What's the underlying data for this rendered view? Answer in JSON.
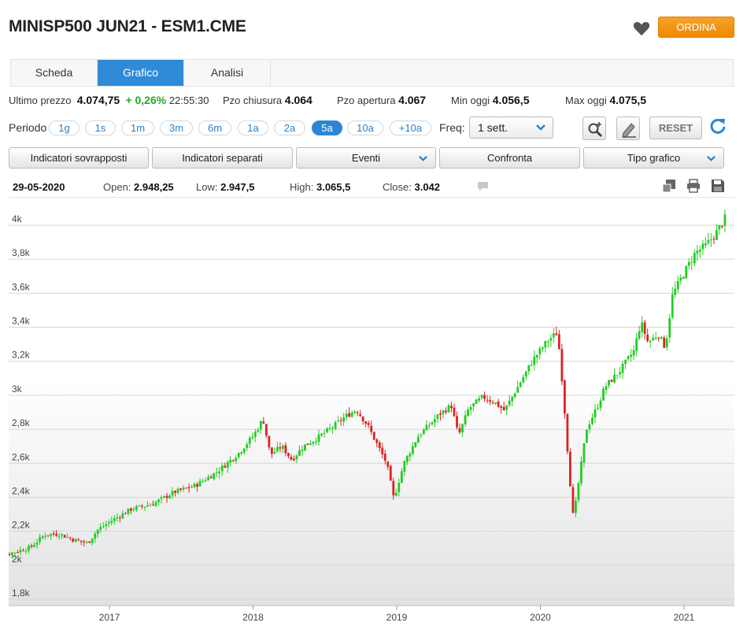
{
  "header": {
    "title": "MINISP500 JUN21 - ESM1.CME",
    "order_label": "ORDINA",
    "favorite_icon": "heart-icon"
  },
  "tabs": [
    {
      "label": "Scheda",
      "active": false
    },
    {
      "label": "Grafico",
      "active": true
    },
    {
      "label": "Analisi",
      "active": false
    }
  ],
  "quote": {
    "last_label": "Ultimo prezzo",
    "last_value": "4.074,75",
    "change": "+ 0,26%",
    "time": "22:55:30",
    "close_label": "Pzo chiusura",
    "close_value": "4.064",
    "open_label": "Pzo apertura",
    "open_value": "4.067",
    "low_label": "Min oggi",
    "low_value": "4.056,5",
    "high_label": "Max oggi",
    "high_value": "4.075,5"
  },
  "controls": {
    "period_label": "Periodo",
    "periods": [
      "1g",
      "1s",
      "1m",
      "3m",
      "6m",
      "1a",
      "2a",
      "5a",
      "10a",
      "+10a"
    ],
    "active_period": "5a",
    "freq_label": "Freq:",
    "freq_value": "1 sett.",
    "reset_label": "RESET",
    "zoom_icon": "zoom-plus-icon",
    "draw_icon": "pencil-icon",
    "refresh_icon": "refresh-icon"
  },
  "toolbar": {
    "overlay_label": "Indicatori sovrapposti",
    "separate_label": "Indicatori separati",
    "events_label": "Eventi",
    "compare_label": "Confronta",
    "chart_type_label": "Tipo grafico"
  },
  "ohlc": {
    "date": "29-05-2020",
    "open_label": "Open:",
    "open_value": "2.948,25",
    "low_label": "Low:",
    "low_value": "2.947,5",
    "high_label": "High:",
    "high_value": "3.065,5",
    "close_label": "Close:",
    "close_value": "3.042"
  },
  "chart_data": {
    "type": "candlestick",
    "frequency": "weekly",
    "y_ticks": [
      "4k",
      "3,8k",
      "3,6k",
      "3,4k",
      "3,2k",
      "3k",
      "2,8k",
      "2,6k",
      "2,4k",
      "2,2k",
      "2k",
      "1,8k"
    ],
    "y_tick_values": [
      4000,
      3800,
      3600,
      3400,
      3200,
      3000,
      2800,
      2600,
      2400,
      2200,
      2000,
      1800
    ],
    "x_ticks": [
      "2017",
      "2018",
      "2019",
      "2020",
      "2021"
    ],
    "x_tick_positions": [
      2017.0,
      2018.0,
      2019.0,
      2020.0,
      2021.0
    ],
    "ylim": [
      1800,
      4080
    ],
    "xlim": [
      2016.15,
      2021.3
    ],
    "colors": {
      "up": "#22cc22",
      "down": "#dd2222",
      "grid": "#d6d6d6"
    },
    "anchors": [
      [
        2016.15,
        2035
      ],
      [
        2016.25,
        2055
      ],
      [
        2016.35,
        2080
      ],
      [
        2016.45,
        2105
      ],
      [
        2016.55,
        2180
      ],
      [
        2016.65,
        2185
      ],
      [
        2016.75,
        2150
      ],
      [
        2016.85,
        2130
      ],
      [
        2016.92,
        2210
      ],
      [
        2017.0,
        2255
      ],
      [
        2017.15,
        2330
      ],
      [
        2017.3,
        2360
      ],
      [
        2017.45,
        2430
      ],
      [
        2017.6,
        2470
      ],
      [
        2017.75,
        2550
      ],
      [
        2017.9,
        2660
      ],
      [
        2018.0,
        2760
      ],
      [
        2018.07,
        2860
      ],
      [
        2018.12,
        2650
      ],
      [
        2018.2,
        2700
      ],
      [
        2018.27,
        2620
      ],
      [
        2018.35,
        2700
      ],
      [
        2018.45,
        2750
      ],
      [
        2018.55,
        2810
      ],
      [
        2018.65,
        2880
      ],
      [
        2018.72,
        2915
      ],
      [
        2018.8,
        2820
      ],
      [
        2018.87,
        2700
      ],
      [
        2018.93,
        2600
      ],
      [
        2018.98,
        2390
      ],
      [
        2019.05,
        2600
      ],
      [
        2019.15,
        2760
      ],
      [
        2019.3,
        2890
      ],
      [
        2019.38,
        2940
      ],
      [
        2019.43,
        2760
      ],
      [
        2019.5,
        2920
      ],
      [
        2019.6,
        2990
      ],
      [
        2019.68,
        2960
      ],
      [
        2019.75,
        2910
      ],
      [
        2019.85,
        3060
      ],
      [
        2019.95,
        3210
      ],
      [
        2020.05,
        3320
      ],
      [
        2020.12,
        3370
      ],
      [
        2020.16,
        3010
      ],
      [
        2020.2,
        2550
      ],
      [
        2020.23,
        2270
      ],
      [
        2020.27,
        2510
      ],
      [
        2020.32,
        2800
      ],
      [
        2020.4,
        2940
      ],
      [
        2020.45,
        3050
      ],
      [
        2020.55,
        3140
      ],
      [
        2020.65,
        3260
      ],
      [
        2020.7,
        3430
      ],
      [
        2020.75,
        3310
      ],
      [
        2020.82,
        3360
      ],
      [
        2020.87,
        3280
      ],
      [
        2020.92,
        3590
      ],
      [
        2021.0,
        3720
      ],
      [
        2021.08,
        3840
      ],
      [
        2021.15,
        3880
      ],
      [
        2021.22,
        3950
      ],
      [
        2021.3,
        4060
      ]
    ]
  }
}
